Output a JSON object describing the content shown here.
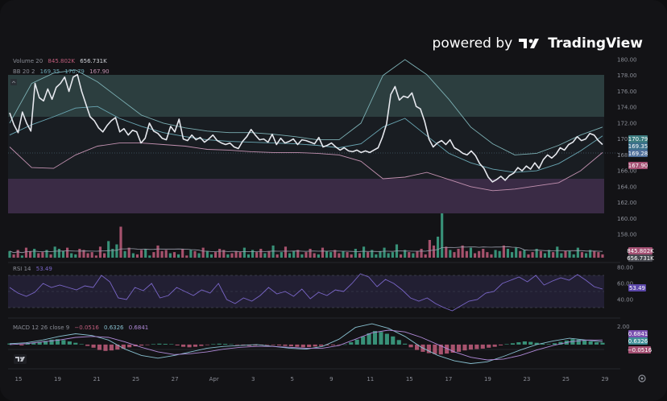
{
  "brand": {
    "powered": "powered by",
    "name": "TradingView"
  },
  "legend": {
    "volume": {
      "name": "Volume 20",
      "v1": "845.802K",
      "v2": "656.731K"
    },
    "bb": {
      "name": "BB 20 2",
      "v1": "169.35",
      "v2": "170.79",
      "v3": "167.90"
    },
    "rsi": {
      "name": "RSI 14",
      "v1": "53.49"
    },
    "macd": {
      "name": "MACD 12 26 close 9",
      "v1": "−0.0516",
      "v2": "0.6326",
      "v3": "0.6841"
    }
  },
  "colors": {
    "bg": "#131316",
    "price": "#e6e8ee",
    "bb_basis": "#6aa7b4",
    "bb_band": "#7cb0b4",
    "up": "#3fa88a",
    "down": "#c25e7d",
    "vol_ma": "#9a9dab",
    "rsi": "#7a66c8",
    "rsi_zone": "#2a2540",
    "macd": "#88c0d0",
    "signal": "#b08ad8",
    "zone_green": "#5b8e8c",
    "zone_purple": "#6a4a7f"
  },
  "chart_data": [
    {
      "type": "line",
      "panel": "price",
      "x_labels": [
        "15",
        "19",
        "21",
        "25",
        "27",
        "Apr",
        "3",
        "5",
        "9",
        "11",
        "15",
        "17",
        "19",
        "23",
        "25",
        "29"
      ],
      "y_ticks": [
        "180.00",
        "178.00",
        "176.00",
        "174.00",
        "172.00",
        "170.00",
        "168.00",
        "166.00",
        "164.00",
        "162.00",
        "160.00",
        "158.00"
      ],
      "ylim": [
        158,
        180
      ],
      "zones": [
        {
          "name": "upper",
          "from": 173.2,
          "to": 178.2
        },
        {
          "name": "lower",
          "from": 162.3,
          "to": 166.5
        }
      ],
      "series": [
        {
          "role": "price",
          "values": [
            173.3,
            171.8,
            170.8,
            173.4,
            172.0,
            171.0,
            177.0,
            175.2,
            174.8,
            176.3,
            175.0,
            176.5,
            177.0,
            177.8,
            176.0,
            177.8,
            178.1,
            176.0,
            174.4,
            172.8,
            172.3,
            171.4,
            170.9,
            171.7,
            172.3,
            172.7,
            170.9,
            171.3,
            170.5,
            171.1,
            170.9,
            169.5,
            170.1,
            172.0,
            171.0,
            170.7,
            170.1,
            169.9,
            171.6,
            170.9,
            172.5,
            170.0,
            169.8,
            170.5,
            169.9,
            170.2,
            169.6,
            170.0,
            170.5,
            169.8,
            169.5,
            169.3,
            169.5,
            169.0,
            168.8,
            169.7,
            170.3,
            171.2,
            170.5,
            169.9,
            170.0,
            169.6,
            170.6,
            169.3,
            170.1,
            169.5,
            169.7,
            170.0,
            169.3,
            169.9,
            169.8,
            169.6,
            169.4,
            170.2,
            169.0,
            169.2,
            169.5,
            169.0,
            168.6,
            168.9,
            168.5,
            168.4,
            168.6,
            168.3,
            168.5,
            168.3,
            168.6,
            168.9,
            170.2,
            171.9,
            175.6,
            176.6,
            174.9,
            175.4,
            175.2,
            175.8,
            174.1,
            173.8,
            172.2,
            170.0,
            169.0,
            169.5,
            169.8,
            169.3,
            169.9,
            168.9,
            168.6,
            168.2,
            168.0,
            168.5,
            167.9,
            166.9,
            166.3,
            165.2,
            164.6,
            164.9,
            165.3,
            164.8,
            165.4,
            165.7,
            166.4,
            166.0,
            166.6,
            166.2,
            167.0,
            166.3,
            167.4,
            168.0,
            167.6,
            168.1,
            168.9,
            168.6,
            169.3,
            169.6,
            170.3,
            169.8,
            170.0,
            170.7,
            170.5,
            169.8,
            169.3
          ]
        },
        {
          "role": "bb_basis",
          "values": [
            170.5,
            171.8,
            172.8,
            173.9,
            174.1,
            172.6,
            171.6,
            170.8,
            170.3,
            169.9,
            169.7,
            169.6,
            169.5,
            169.4,
            169.2,
            168.9,
            169.4,
            171.5,
            172.6,
            170.4,
            168.2,
            167.0,
            166.2,
            165.8,
            166.0,
            166.9,
            168.5,
            170.4
          ]
        },
        {
          "role": "bb_upper",
          "values": [
            172.0,
            177.0,
            178.3,
            178.7,
            177.2,
            175.1,
            173.0,
            172.0,
            171.4,
            171.0,
            170.8,
            170.8,
            170.6,
            170.3,
            169.9,
            169.9,
            172.0,
            178.0,
            180.0,
            178.1,
            175.0,
            171.5,
            169.4,
            168.0,
            168.2,
            169.2,
            170.5,
            171.5
          ]
        },
        {
          "role": "bb_lower",
          "values": [
            169.0,
            166.4,
            166.3,
            168.0,
            169.1,
            169.5,
            169.5,
            169.3,
            169.1,
            168.7,
            168.6,
            168.4,
            168.3,
            168.3,
            168.2,
            168.0,
            167.2,
            165.0,
            165.2,
            165.8,
            164.9,
            164.0,
            163.5,
            163.7,
            164.1,
            164.5,
            166.0,
            168.3
          ]
        }
      ],
      "last_values": {
        "bb_upper": "170.79",
        "bb_basis": "169.35",
        "price": "169.28",
        "bb_lower": "167.90"
      }
    },
    {
      "type": "bar",
      "panel": "volume",
      "values": [
        6,
        3,
        7,
        2,
        9,
        6,
        8,
        4,
        5,
        7,
        3,
        10,
        8,
        6,
        9,
        4,
        3,
        8,
        7,
        4,
        5,
        2,
        10,
        4,
        15,
        8,
        12,
        28,
        6,
        9,
        4,
        3,
        7,
        8,
        2,
        5,
        11,
        6,
        7,
        4,
        5,
        3,
        8,
        2,
        7,
        6,
        4,
        9,
        6,
        3,
        5,
        8,
        7,
        3,
        4,
        6,
        5,
        9,
        3,
        7,
        5,
        8,
        4,
        6,
        11,
        3,
        5,
        10,
        4,
        6,
        7,
        3,
        5,
        8,
        4,
        3,
        9,
        6,
        5,
        7,
        4,
        6,
        5,
        3,
        8,
        4,
        10,
        5,
        7,
        3,
        6,
        9,
        4,
        5,
        12,
        3,
        7,
        5,
        4,
        6,
        8,
        3,
        16,
        11,
        19,
        40,
        10,
        7,
        5,
        8,
        11,
        6,
        9,
        4,
        6,
        8,
        5,
        3,
        7,
        6,
        11,
        8,
        5,
        9,
        6,
        7,
        3,
        5,
        8,
        6,
        4,
        7,
        5,
        10,
        4,
        6,
        6,
        3,
        9,
        5,
        4,
        7,
        6,
        5,
        3
      ],
      "last_values": {
        "volume": "845.802K",
        "volume_ma": "656.731K"
      }
    },
    {
      "type": "line",
      "panel": "rsi",
      "y_ticks": [
        "80.00",
        "60.00",
        "40.00"
      ],
      "ylim": [
        20,
        80
      ],
      "bands": [
        30,
        50,
        70
      ],
      "values": [
        55,
        48,
        44,
        49,
        60,
        55,
        58,
        55,
        52,
        57,
        55,
        70,
        62,
        42,
        40,
        55,
        51,
        60,
        42,
        45,
        55,
        50,
        45,
        52,
        48,
        60,
        40,
        35,
        42,
        38,
        45,
        55,
        47,
        50,
        44,
        53,
        41,
        49,
        45,
        52,
        50,
        60,
        72,
        68,
        56,
        65,
        60,
        52,
        42,
        38,
        42,
        35,
        30,
        26,
        32,
        38,
        40,
        48,
        50,
        60,
        64,
        68,
        62,
        70,
        58,
        63,
        67,
        64,
        71,
        64,
        56,
        53
      ],
      "last_values": {
        "rsi": "53.49"
      }
    },
    {
      "type": "bar",
      "panel": "macd",
      "y_ticks": [
        "2.00"
      ],
      "ylim": [
        -2.5,
        2.4
      ],
      "histogram": [
        0.12,
        0.05,
        -0.1,
        0.15,
        0.2,
        0.3,
        0.4,
        0.55,
        0.6,
        0.5,
        0.35,
        0.2,
        0.05,
        -0.15,
        -0.35,
        -0.6,
        -0.7,
        -0.65,
        -0.55,
        -0.45,
        -0.3,
        -0.2,
        -0.12,
        -0.05,
        0.05,
        0.1,
        0.08,
        0.05,
        -0.1,
        -0.25,
        -0.3,
        -0.25,
        -0.15,
        -0.05,
        0.05,
        0.1,
        0.08,
        0.04,
        -0.05,
        -0.1,
        -0.15,
        -0.12,
        -0.08,
        -0.05,
        -0.06,
        -0.1,
        -0.15,
        -0.2,
        -0.25,
        -0.3,
        -0.28,
        -0.22,
        -0.15,
        -0.1,
        -0.08,
        -0.05,
        0.02,
        0.25,
        0.55,
        0.9,
        1.25,
        1.5,
        1.4,
        1.2,
        0.9,
        0.5,
        0.1,
        -0.3,
        -0.6,
        -0.8,
        -0.95,
        -1.05,
        -1.1,
        -1.0,
        -0.9,
        -0.8,
        -0.65,
        -0.55,
        -0.5,
        -0.45,
        -0.35,
        -0.25,
        -0.1,
        0.05,
        0.15,
        0.25,
        0.35,
        0.3,
        0.2,
        0.1,
        0.05,
        0.15,
        0.3,
        0.45,
        0.6,
        0.55,
        0.45,
        0.35,
        0.25,
        0.2
      ],
      "series": [
        {
          "role": "macd",
          "values": [
            0.1,
            0.2,
            0.5,
            0.9,
            1.2,
            1.0,
            0.5,
            -0.5,
            -1.2,
            -1.5,
            -1.2,
            -0.8,
            -0.4,
            -0.2,
            -0.1,
            0.0,
            -0.2,
            -0.4,
            -0.5,
            -0.2,
            0.6,
            1.9,
            2.3,
            1.8,
            0.9,
            -0.3,
            -1.2,
            -1.8,
            -2.1,
            -1.9,
            -1.3,
            -0.6,
            0.0,
            0.4,
            0.7,
            0.5,
            0.3
          ]
        },
        {
          "role": "signal",
          "values": [
            0.0,
            0.1,
            0.3,
            0.5,
            0.8,
            0.9,
            0.8,
            0.3,
            -0.3,
            -0.8,
            -1.1,
            -1.0,
            -0.8,
            -0.5,
            -0.3,
            -0.2,
            -0.2,
            -0.3,
            -0.4,
            -0.4,
            -0.1,
            0.6,
            1.3,
            1.6,
            1.4,
            0.8,
            0.0,
            -0.8,
            -1.4,
            -1.7,
            -1.6,
            -1.2,
            -0.6,
            -0.1,
            0.3,
            0.5,
            0.5
          ]
        }
      ],
      "last_values": {
        "signal": "0.6841",
        "macd": "0.6326",
        "hist": "−0.0516"
      }
    }
  ]
}
